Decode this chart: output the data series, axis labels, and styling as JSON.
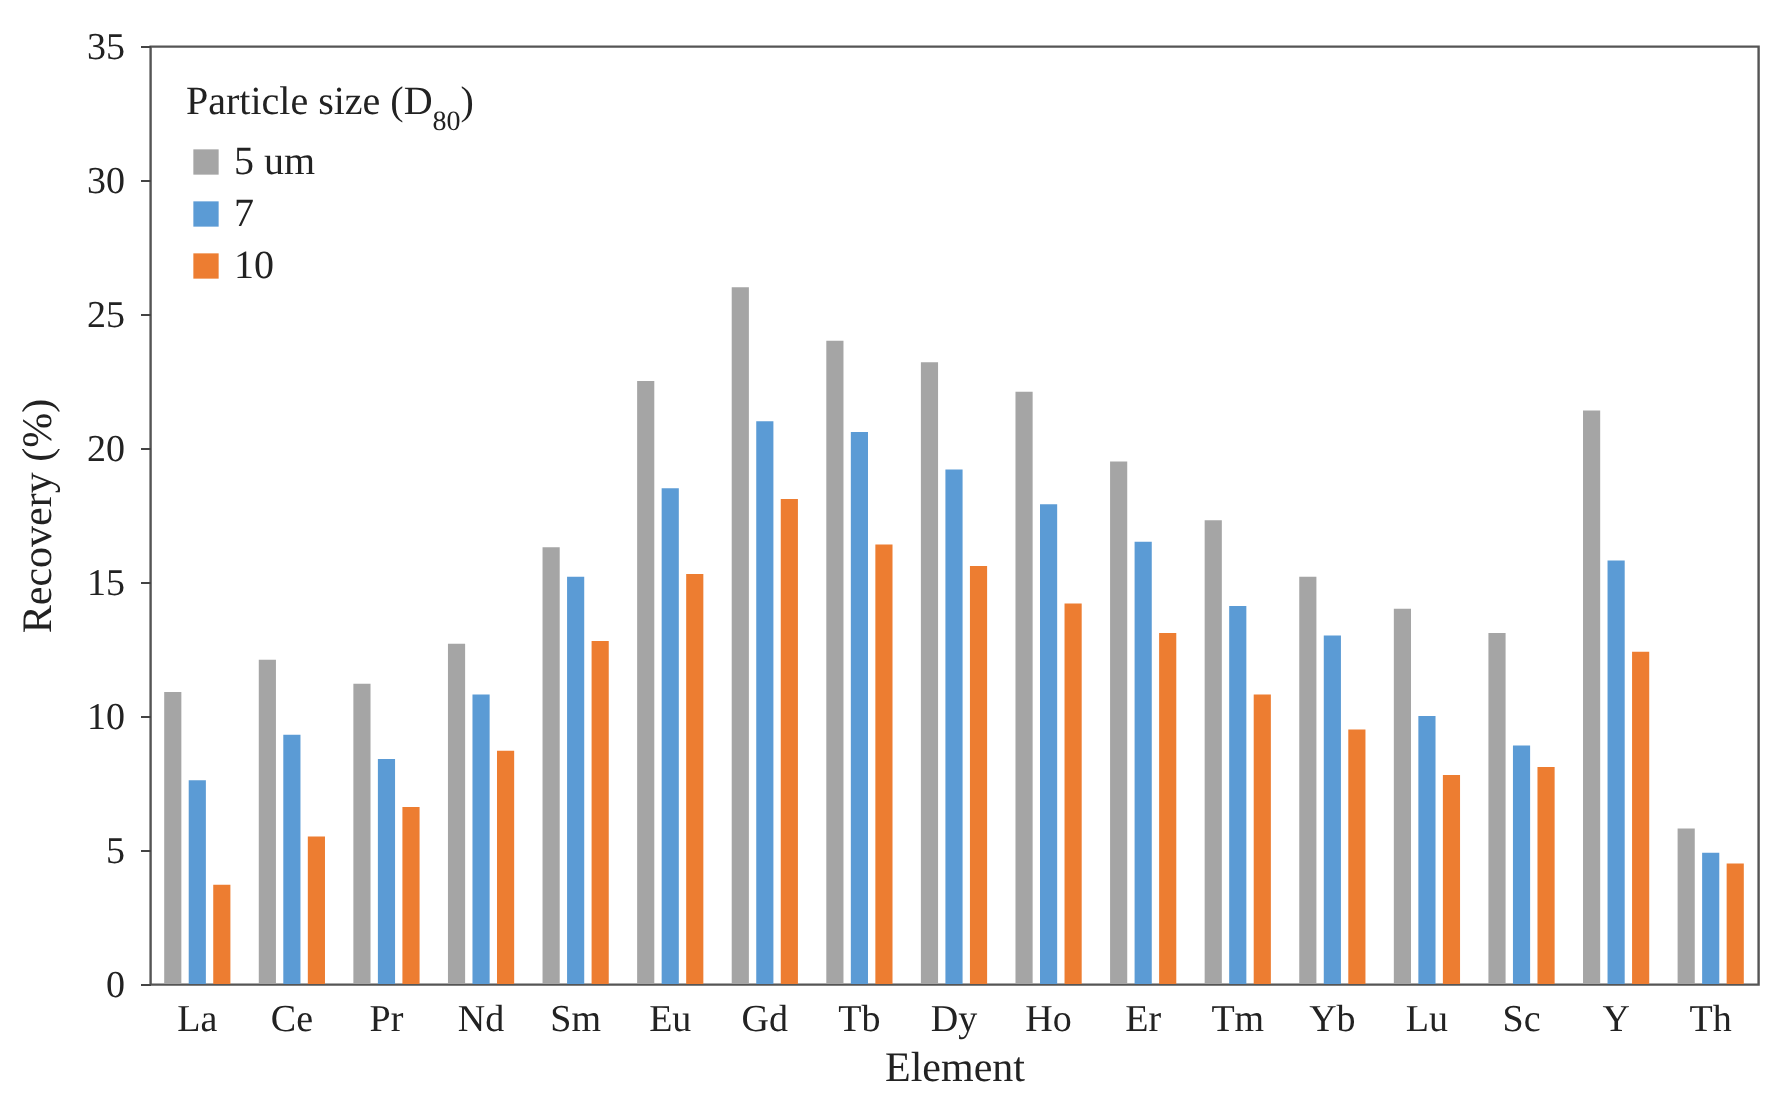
{
  "chart_data": {
    "type": "bar",
    "xlabel": "Element",
    "ylabel": "Recovery (%)",
    "legend_title": "Particle size (D$_{80}$)",
    "categories": [
      "La",
      "Ce",
      "Pr",
      "Nd",
      "Sm",
      "Eu",
      "Gd",
      "Tb",
      "Dy",
      "Ho",
      "Er",
      "Tm",
      "Yb",
      "Lu",
      "Sc",
      "Y",
      "Th"
    ],
    "series": [
      {
        "name": "5 um",
        "color": "#a5a5a5",
        "values": [
          10.9,
          12.1,
          11.2,
          12.7,
          16.3,
          22.5,
          26.0,
          24.0,
          23.2,
          22.1,
          19.5,
          17.3,
          15.2,
          14.0,
          13.1,
          21.4,
          5.8
        ]
      },
      {
        "name": "7",
        "color": "#5b9bd5",
        "values": [
          7.6,
          9.3,
          8.4,
          10.8,
          15.2,
          18.5,
          21.0,
          20.6,
          19.2,
          17.9,
          16.5,
          14.1,
          13.0,
          10.0,
          8.9,
          15.8,
          4.9
        ]
      },
      {
        "name": "10",
        "color": "#ed7d31",
        "values": [
          3.7,
          5.5,
          6.6,
          8.7,
          12.8,
          15.3,
          18.1,
          16.4,
          15.6,
          14.2,
          13.1,
          10.8,
          9.5,
          7.8,
          8.1,
          12.4,
          4.5
        ]
      }
    ],
    "ylim": [
      0,
      35
    ],
    "yticks": [
      0,
      5,
      10,
      15,
      20,
      25,
      30,
      35
    ],
    "grid": false,
    "legend": "top left"
  }
}
